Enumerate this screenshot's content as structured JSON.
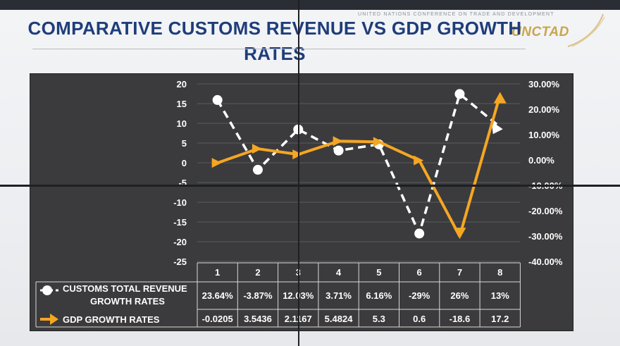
{
  "header": {
    "title": "COMPARATIVE CUSTOMS REVENUE VS GDP GROWTH RATES",
    "org_full": "UNITED NATIONS CONFERENCE ON TRADE AND DEVELOPMENT",
    "org_logo": "UNCTAD"
  },
  "chart_data": {
    "type": "line",
    "categories": [
      "1",
      "2",
      "3",
      "4",
      "5",
      "6",
      "7",
      "8"
    ],
    "series": [
      {
        "name": "CUSTOMS TOTAL REVENUE GROWTH RATES",
        "axis": "right",
        "style": "dashed",
        "marker": "circle",
        "color": "#ffffff",
        "values": [
          23.64,
          -3.87,
          12.03,
          3.71,
          6.16,
          -29,
          26,
          13
        ],
        "labels": [
          "23.64%",
          "-3.87%",
          "12.03%",
          "3.71%",
          "6.16%",
          "-29%",
          "26%",
          "13%"
        ]
      },
      {
        "name": "GDP GROWTH RATES",
        "axis": "left",
        "style": "solid",
        "marker": "arrow",
        "color": "#f5a623",
        "values": [
          -0.0205,
          3.5436,
          2.1167,
          5.4824,
          5.3,
          0.6,
          -18.6,
          17.2
        ],
        "labels": [
          "-0.0205",
          "3.5436",
          "2.1167",
          "5.4824",
          "5.3",
          "0.6",
          "-18.6",
          "17.2"
        ]
      }
    ],
    "y_left": {
      "range": [
        -25,
        20
      ],
      "ticks": [
        20,
        15,
        10,
        5,
        0,
        -5,
        -10,
        -15,
        -20,
        -25
      ],
      "tick_labels": [
        "20",
        "15",
        "10",
        "5",
        "0",
        "-5",
        "-10",
        "-15",
        "-20",
        "-25"
      ]
    },
    "y_right": {
      "range": [
        -40,
        30
      ],
      "ticks": [
        30,
        20,
        10,
        0,
        -10,
        -20,
        -30,
        -40
      ],
      "tick_labels": [
        "30.00%",
        "20.00%",
        "10.00%",
        "0.00%",
        "-10.00%",
        "-20.00%",
        "-30.00%",
        "-40.00%"
      ]
    },
    "grid": true,
    "data_table": true
  }
}
